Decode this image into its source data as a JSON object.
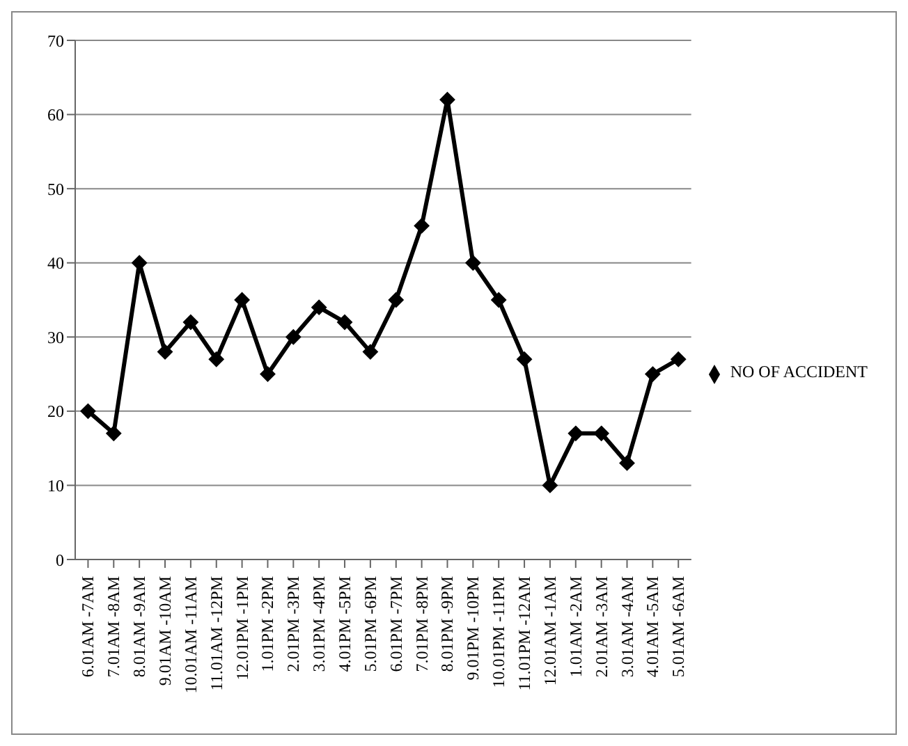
{
  "chart_data": {
    "type": "line",
    "categories": [
      "6.01AM -7AM",
      "7.01AM -8AM",
      "8.01AM -9AM",
      "9.01AM -10AM",
      "10.01AM -11AM",
      "11.01AM -12PM",
      "12.01PM -1PM",
      "1.01PM -2PM",
      "2.01PM -3PM",
      "3.01PM -4PM",
      "4.01PM -5PM",
      "5.01PM -6PM",
      "6.01PM -7PM",
      "7.01PM -8PM",
      "8.01PM -9PM",
      "9.01PM -10PM",
      "10.01PM -11PM",
      "11.01PM -12AM",
      "12.01AM -1AM",
      "1.01AM -2AM",
      "2.01AM -3AM",
      "3.01AM -4AM",
      "4.01AM -5AM",
      "5.01AM -6AM"
    ],
    "series": [
      {
        "name": "NO OF ACCIDENT",
        "color": "#000000",
        "values": [
          20,
          17,
          40,
          28,
          32,
          27,
          35,
          25,
          30,
          34,
          32,
          28,
          35,
          45,
          62,
          40,
          35,
          27,
          10,
          17,
          17,
          13,
          25,
          27
        ]
      }
    ],
    "ylim": [
      0,
      70
    ],
    "yticks": [
      0,
      10,
      20,
      30,
      40,
      50,
      60,
      70
    ],
    "grid": "y",
    "legend": "right",
    "marker": "diamond",
    "line_style": "solid"
  }
}
